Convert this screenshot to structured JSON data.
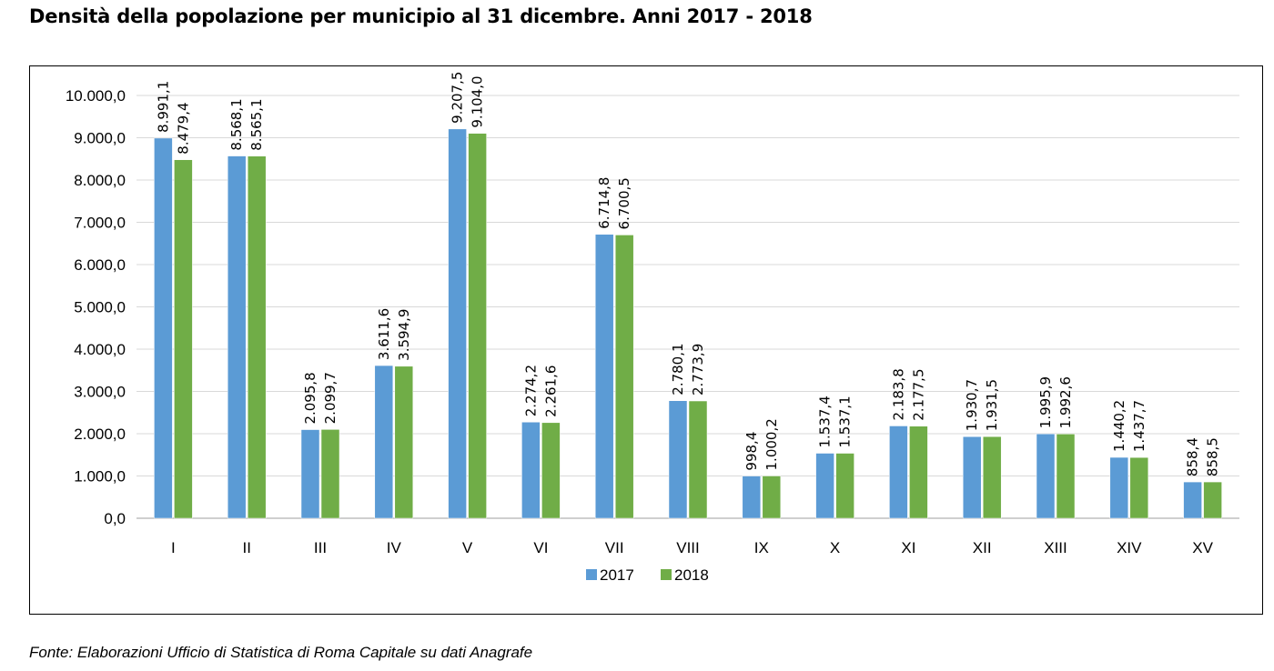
{
  "title": "Densità della popolazione per municipio al 31 dicembre. Anni 2017 - 2018",
  "source": "Fonte: Elaborazioni Ufficio di Statistica di Roma Capitale su dati Anagrafe",
  "colors": {
    "s2017": "#5b9bd5",
    "s2018": "#70ad47",
    "grid": "#d9d9d9",
    "axis": "#bfbfbf"
  },
  "chart_data": {
    "type": "bar",
    "categories": [
      "I",
      "II",
      "III",
      "IV",
      "V",
      "VI",
      "VII",
      "VIII",
      "IX",
      "X",
      "XI",
      "XII",
      "XIII",
      "XIV",
      "XV"
    ],
    "series": [
      {
        "name": "2017",
        "values": [
          8991.1,
          8568.1,
          2095.8,
          3611.6,
          9207.5,
          2274.2,
          6714.8,
          2780.1,
          998.4,
          1537.4,
          2183.8,
          1930.7,
          1995.9,
          1440.2,
          858.4
        ],
        "labels": [
          "8.991,1",
          "8.568,1",
          "2.095,8",
          "3.611,6",
          "9.207,5",
          "2.274,2",
          "6.714,8",
          "2.780,1",
          "998,4",
          "1.537,4",
          "2.183,8",
          "1.930,7",
          "1.995,9",
          "1.440,2",
          "858,4"
        ]
      },
      {
        "name": "2018",
        "values": [
          8479.4,
          8565.1,
          2099.7,
          3594.9,
          9104.0,
          2261.6,
          6700.5,
          2773.9,
          1000.2,
          1537.1,
          2177.5,
          1931.5,
          1992.6,
          1437.7,
          858.5
        ],
        "labels": [
          "8.479,4",
          "8.565,1",
          "2.099,7",
          "3.594,9",
          "9.104,0",
          "2.261,6",
          "6.700,5",
          "2.773,9",
          "1.000,2",
          "1.537,1",
          "2.177,5",
          "1.931,5",
          "1.992,6",
          "1.437,7",
          "858,5"
        ]
      }
    ],
    "ylim": [
      0,
      10000
    ],
    "yticks": [
      0,
      1000,
      2000,
      3000,
      4000,
      5000,
      6000,
      7000,
      8000,
      9000,
      10000
    ],
    "ytick_labels": [
      "0,0",
      "1.000,0",
      "2.000,0",
      "3.000,0",
      "4.000,0",
      "5.000,0",
      "6.000,0",
      "7.000,0",
      "8.000,0",
      "9.000,0",
      "10.000,0"
    ],
    "grid": true,
    "legend_position": "bottom"
  }
}
